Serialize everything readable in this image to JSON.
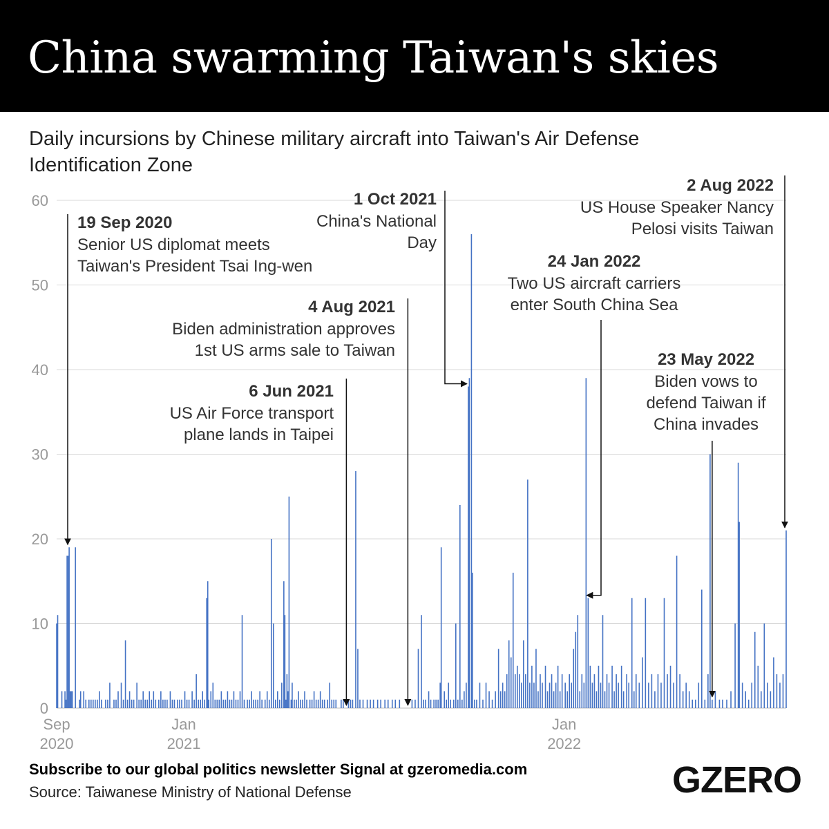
{
  "header": {
    "title": "China swarming Taiwan's skies",
    "subtitle": "Daily incursions by Chinese military aircraft into Taiwan's Air Defense Identification Zone"
  },
  "footer": {
    "signup": "Subscribe to our global politics newsletter Signal at gzeromedia.com",
    "source": "Source: Taiwanese Ministry of National Defense",
    "logo": "GZERO"
  },
  "colors": {
    "bar": "#4472c4",
    "grid": "#d9d9d9",
    "header_bg": "#000000"
  },
  "chart_data": {
    "type": "bar",
    "y_ticks": [
      0,
      10,
      20,
      30,
      40,
      50,
      60
    ],
    "ylim": [
      0,
      60
    ],
    "xlim": [
      "2020-09-01",
      "2022-08-02"
    ],
    "x_ticks": [
      {
        "date": "2020-09-01",
        "line1": "Sep",
        "line2": "2020"
      },
      {
        "date": "2021-01-01",
        "line1": "Jan",
        "line2": "2021"
      },
      {
        "date": "2022-01-01",
        "line1": "Jan",
        "line2": "2022"
      }
    ],
    "grid": true,
    "points": [
      [
        "2020-09-01",
        10
      ],
      [
        "2020-09-02",
        11
      ],
      [
        "2020-09-06",
        2
      ],
      [
        "2020-09-09",
        2
      ],
      [
        "2020-09-10",
        1
      ],
      [
        "2020-09-11",
        18
      ],
      [
        "2020-09-12",
        18
      ],
      [
        "2020-09-13",
        19
      ],
      [
        "2020-09-14",
        2
      ],
      [
        "2020-09-15",
        2
      ],
      [
        "2020-09-16",
        2
      ],
      [
        "2020-09-19",
        19
      ],
      [
        "2020-09-23",
        1
      ],
      [
        "2020-09-24",
        2
      ],
      [
        "2020-09-27",
        2
      ],
      [
        "2020-09-29",
        1
      ],
      [
        "2020-10-02",
        1
      ],
      [
        "2020-10-04",
        1
      ],
      [
        "2020-10-06",
        1
      ],
      [
        "2020-10-08",
        1
      ],
      [
        "2020-10-10",
        1
      ],
      [
        "2020-10-12",
        2
      ],
      [
        "2020-10-14",
        1
      ],
      [
        "2020-10-18",
        1
      ],
      [
        "2020-10-20",
        1
      ],
      [
        "2020-10-22",
        3
      ],
      [
        "2020-10-26",
        1
      ],
      [
        "2020-10-28",
        1
      ],
      [
        "2020-10-30",
        2
      ],
      [
        "2020-11-02",
        3
      ],
      [
        "2020-11-04",
        1
      ],
      [
        "2020-11-06",
        8
      ],
      [
        "2020-11-08",
        1
      ],
      [
        "2020-11-10",
        2
      ],
      [
        "2020-11-12",
        1
      ],
      [
        "2020-11-14",
        1
      ],
      [
        "2020-11-17",
        3
      ],
      [
        "2020-11-19",
        1
      ],
      [
        "2020-11-21",
        1
      ],
      [
        "2020-11-23",
        2
      ],
      [
        "2020-11-25",
        1
      ],
      [
        "2020-11-27",
        1
      ],
      [
        "2020-11-29",
        2
      ],
      [
        "2020-12-01",
        1
      ],
      [
        "2020-12-03",
        2
      ],
      [
        "2020-12-05",
        1
      ],
      [
        "2020-12-08",
        1
      ],
      [
        "2020-12-10",
        2
      ],
      [
        "2020-12-12",
        1
      ],
      [
        "2020-12-14",
        1
      ],
      [
        "2020-12-16",
        1
      ],
      [
        "2020-12-19",
        2
      ],
      [
        "2020-12-21",
        1
      ],
      [
        "2020-12-23",
        1
      ],
      [
        "2020-12-26",
        1
      ],
      [
        "2020-12-28",
        1
      ],
      [
        "2020-12-30",
        1
      ],
      [
        "2021-01-02",
        2
      ],
      [
        "2021-01-04",
        1
      ],
      [
        "2021-01-06",
        1
      ],
      [
        "2021-01-09",
        2
      ],
      [
        "2021-01-11",
        1
      ],
      [
        "2021-01-13",
        4
      ],
      [
        "2021-01-15",
        1
      ],
      [
        "2021-01-17",
        1
      ],
      [
        "2021-01-19",
        2
      ],
      [
        "2021-01-21",
        1
      ],
      [
        "2021-01-23",
        13
      ],
      [
        "2021-01-24",
        15
      ],
      [
        "2021-01-25",
        1
      ],
      [
        "2021-01-27",
        2
      ],
      [
        "2021-01-29",
        3
      ],
      [
        "2021-01-31",
        1
      ],
      [
        "2021-02-02",
        1
      ],
      [
        "2021-02-04",
        1
      ],
      [
        "2021-02-06",
        2
      ],
      [
        "2021-02-08",
        1
      ],
      [
        "2021-02-10",
        1
      ],
      [
        "2021-02-12",
        2
      ],
      [
        "2021-02-14",
        1
      ],
      [
        "2021-02-16",
        1
      ],
      [
        "2021-02-18",
        2
      ],
      [
        "2021-02-20",
        1
      ],
      [
        "2021-02-22",
        1
      ],
      [
        "2021-02-24",
        2
      ],
      [
        "2021-02-26",
        11
      ],
      [
        "2021-02-28",
        1
      ],
      [
        "2021-03-03",
        1
      ],
      [
        "2021-03-05",
        1
      ],
      [
        "2021-03-07",
        2
      ],
      [
        "2021-03-09",
        1
      ],
      [
        "2021-03-11",
        1
      ],
      [
        "2021-03-13",
        1
      ],
      [
        "2021-03-15",
        2
      ],
      [
        "2021-03-17",
        1
      ],
      [
        "2021-03-20",
        1
      ],
      [
        "2021-03-22",
        2
      ],
      [
        "2021-03-24",
        1
      ],
      [
        "2021-03-26",
        20
      ],
      [
        "2021-03-28",
        10
      ],
      [
        "2021-03-30",
        1
      ],
      [
        "2021-04-01",
        2
      ],
      [
        "2021-04-03",
        1
      ],
      [
        "2021-04-05",
        3
      ],
      [
        "2021-04-07",
        15
      ],
      [
        "2021-04-08",
        11
      ],
      [
        "2021-04-09",
        1
      ],
      [
        "2021-04-10",
        4
      ],
      [
        "2021-04-11",
        2
      ],
      [
        "2021-04-12",
        25
      ],
      [
        "2021-04-14",
        1
      ],
      [
        "2021-04-15",
        3
      ],
      [
        "2021-04-17",
        1
      ],
      [
        "2021-04-19",
        1
      ],
      [
        "2021-04-21",
        2
      ],
      [
        "2021-04-23",
        1
      ],
      [
        "2021-04-25",
        1
      ],
      [
        "2021-04-27",
        2
      ],
      [
        "2021-04-29",
        1
      ],
      [
        "2021-05-02",
        1
      ],
      [
        "2021-05-04",
        1
      ],
      [
        "2021-05-06",
        2
      ],
      [
        "2021-05-08",
        1
      ],
      [
        "2021-05-10",
        1
      ],
      [
        "2021-05-12",
        2
      ],
      [
        "2021-05-14",
        1
      ],
      [
        "2021-05-16",
        1
      ],
      [
        "2021-05-19",
        1
      ],
      [
        "2021-05-21",
        3
      ],
      [
        "2021-05-23",
        1
      ],
      [
        "2021-05-25",
        1
      ],
      [
        "2021-05-27",
        1
      ],
      [
        "2021-06-01",
        1
      ],
      [
        "2021-06-03",
        1
      ],
      [
        "2021-06-06",
        0
      ],
      [
        "2021-06-08",
        1
      ],
      [
        "2021-06-10",
        1
      ],
      [
        "2021-06-12",
        1
      ],
      [
        "2021-06-15",
        28
      ],
      [
        "2021-06-17",
        7
      ],
      [
        "2021-06-19",
        1
      ],
      [
        "2021-06-22",
        1
      ],
      [
        "2021-06-26",
        1
      ],
      [
        "2021-06-29",
        1
      ],
      [
        "2021-07-02",
        1
      ],
      [
        "2021-07-06",
        1
      ],
      [
        "2021-07-09",
        1
      ],
      [
        "2021-07-13",
        1
      ],
      [
        "2021-07-16",
        1
      ],
      [
        "2021-07-20",
        1
      ],
      [
        "2021-07-23",
        1
      ],
      [
        "2021-07-27",
        1
      ],
      [
        "2021-08-04",
        0
      ],
      [
        "2021-08-08",
        1
      ],
      [
        "2021-08-11",
        1
      ],
      [
        "2021-08-14",
        7
      ],
      [
        "2021-08-17",
        11
      ],
      [
        "2021-08-19",
        1
      ],
      [
        "2021-08-21",
        1
      ],
      [
        "2021-08-24",
        2
      ],
      [
        "2021-08-26",
        1
      ],
      [
        "2021-08-29",
        1
      ],
      [
        "2021-08-31",
        1
      ],
      [
        "2021-09-02",
        1
      ],
      [
        "2021-09-04",
        3
      ],
      [
        "2021-09-05",
        19
      ],
      [
        "2021-09-08",
        2
      ],
      [
        "2021-09-10",
        1
      ],
      [
        "2021-09-12",
        3
      ],
      [
        "2021-09-14",
        1
      ],
      [
        "2021-09-17",
        1
      ],
      [
        "2021-09-19",
        10
      ],
      [
        "2021-09-21",
        1
      ],
      [
        "2021-09-23",
        24
      ],
      [
        "2021-09-25",
        1
      ],
      [
        "2021-09-27",
        2
      ],
      [
        "2021-09-29",
        3
      ],
      [
        "2021-10-01",
        38
      ],
      [
        "2021-10-02",
        39
      ],
      [
        "2021-10-04",
        56
      ],
      [
        "2021-10-05",
        16
      ],
      [
        "2021-10-07",
        1
      ],
      [
        "2021-10-09",
        1
      ],
      [
        "2021-10-12",
        3
      ],
      [
        "2021-10-15",
        1
      ],
      [
        "2021-10-18",
        3
      ],
      [
        "2021-10-21",
        2
      ],
      [
        "2021-10-24",
        1
      ],
      [
        "2021-10-27",
        2
      ],
      [
        "2021-10-30",
        7
      ],
      [
        "2021-11-01",
        2
      ],
      [
        "2021-11-03",
        3
      ],
      [
        "2021-11-05",
        2
      ],
      [
        "2021-11-07",
        4
      ],
      [
        "2021-11-09",
        8
      ],
      [
        "2021-11-11",
        6
      ],
      [
        "2021-11-13",
        16
      ],
      [
        "2021-11-15",
        4
      ],
      [
        "2021-11-17",
        5
      ],
      [
        "2021-11-19",
        4
      ],
      [
        "2021-11-21",
        3
      ],
      [
        "2021-11-23",
        8
      ],
      [
        "2021-11-25",
        4
      ],
      [
        "2021-11-27",
        27
      ],
      [
        "2021-11-29",
        3
      ],
      [
        "2021-12-01",
        5
      ],
      [
        "2021-12-03",
        3
      ],
      [
        "2021-12-05",
        7
      ],
      [
        "2021-12-07",
        2
      ],
      [
        "2021-12-09",
        4
      ],
      [
        "2021-12-11",
        3
      ],
      [
        "2021-12-14",
        5
      ],
      [
        "2021-12-16",
        2
      ],
      [
        "2021-12-18",
        3
      ],
      [
        "2021-12-20",
        4
      ],
      [
        "2021-12-22",
        2
      ],
      [
        "2021-12-24",
        3
      ],
      [
        "2021-12-26",
        5
      ],
      [
        "2021-12-28",
        2
      ],
      [
        "2021-12-30",
        4
      ],
      [
        "2022-01-02",
        3
      ],
      [
        "2022-01-04",
        2
      ],
      [
        "2022-01-06",
        4
      ],
      [
        "2022-01-08",
        3
      ],
      [
        "2022-01-10",
        7
      ],
      [
        "2022-01-12",
        9
      ],
      [
        "2022-01-14",
        11
      ],
      [
        "2022-01-16",
        2
      ],
      [
        "2022-01-18",
        4
      ],
      [
        "2022-01-20",
        3
      ],
      [
        "2022-01-22",
        39
      ],
      [
        "2022-01-24",
        13
      ],
      [
        "2022-01-26",
        5
      ],
      [
        "2022-01-28",
        3
      ],
      [
        "2022-01-30",
        4
      ],
      [
        "2022-02-01",
        2
      ],
      [
        "2022-02-03",
        5
      ],
      [
        "2022-02-05",
        3
      ],
      [
        "2022-02-07",
        11
      ],
      [
        "2022-02-09",
        2
      ],
      [
        "2022-02-11",
        4
      ],
      [
        "2022-02-13",
        3
      ],
      [
        "2022-02-16",
        5
      ],
      [
        "2022-02-18",
        2
      ],
      [
        "2022-02-20",
        4
      ],
      [
        "2022-02-22",
        3
      ],
      [
        "2022-02-25",
        5
      ],
      [
        "2022-02-27",
        2
      ],
      [
        "2022-03-02",
        4
      ],
      [
        "2022-03-04",
        3
      ],
      [
        "2022-03-07",
        13
      ],
      [
        "2022-03-09",
        2
      ],
      [
        "2022-03-11",
        4
      ],
      [
        "2022-03-14",
        3
      ],
      [
        "2022-03-17",
        6
      ],
      [
        "2022-03-20",
        13
      ],
      [
        "2022-03-23",
        3
      ],
      [
        "2022-03-26",
        4
      ],
      [
        "2022-03-29",
        2
      ],
      [
        "2022-04-01",
        4
      ],
      [
        "2022-04-04",
        3
      ],
      [
        "2022-04-07",
        13
      ],
      [
        "2022-04-10",
        4
      ],
      [
        "2022-04-13",
        5
      ],
      [
        "2022-04-16",
        3
      ],
      [
        "2022-04-19",
        18
      ],
      [
        "2022-04-22",
        4
      ],
      [
        "2022-04-25",
        2
      ],
      [
        "2022-04-28",
        3
      ],
      [
        "2022-05-01",
        2
      ],
      [
        "2022-05-04",
        1
      ],
      [
        "2022-05-07",
        1
      ],
      [
        "2022-05-10",
        3
      ],
      [
        "2022-05-13",
        14
      ],
      [
        "2022-05-16",
        1
      ],
      [
        "2022-05-19",
        4
      ],
      [
        "2022-05-21",
        30
      ],
      [
        "2022-05-23",
        1
      ],
      [
        "2022-05-26",
        2
      ],
      [
        "2022-05-30",
        1
      ],
      [
        "2022-06-02",
        1
      ],
      [
        "2022-06-06",
        1
      ],
      [
        "2022-06-10",
        2
      ],
      [
        "2022-06-14",
        10
      ],
      [
        "2022-06-17",
        29
      ],
      [
        "2022-06-18",
        22
      ],
      [
        "2022-06-21",
        3
      ],
      [
        "2022-06-24",
        2
      ],
      [
        "2022-06-27",
        1
      ],
      [
        "2022-06-30",
        3
      ],
      [
        "2022-07-03",
        9
      ],
      [
        "2022-07-06",
        5
      ],
      [
        "2022-07-09",
        2
      ],
      [
        "2022-07-12",
        10
      ],
      [
        "2022-07-15",
        3
      ],
      [
        "2022-07-18",
        2
      ],
      [
        "2022-07-21",
        6
      ],
      [
        "2022-07-24",
        4
      ],
      [
        "2022-07-27",
        3
      ],
      [
        "2022-07-30",
        4
      ],
      [
        "2022-08-02",
        21
      ]
    ],
    "annotations": [
      {
        "date": "2020-09-19",
        "value": 19,
        "date_label": "19 Sep 2020",
        "text": [
          "Senior US diplomat meets",
          "Taiwan's President Tsai Ing-wen"
        ]
      },
      {
        "date": "2021-06-06",
        "value": 0,
        "date_label": "6 Jun 2021",
        "text": [
          "US Air Force transport",
          "plane lands in Taipei"
        ]
      },
      {
        "date": "2021-08-04",
        "value": 0,
        "date_label": "4 Aug 2021",
        "text": [
          "Biden administration approves",
          "1st US arms sale to Taiwan"
        ]
      },
      {
        "date": "2021-10-01",
        "value": 38,
        "date_label": "1 Oct 2021",
        "text": [
          "China's National",
          "Day"
        ]
      },
      {
        "date": "2022-01-24",
        "value": 13,
        "date_label": "24 Jan 2022",
        "text": [
          "Two US aircraft carriers",
          "enter South China Sea"
        ]
      },
      {
        "date": "2022-05-23",
        "value": 1,
        "date_label": "23 May 2022",
        "text": [
          "Biden vows to",
          "defend Taiwan if",
          "China invades"
        ]
      },
      {
        "date": "2022-08-02",
        "value": 21,
        "date_label": "2 Aug 2022",
        "text": [
          "US House Speaker Nancy",
          "Pelosi visits Taiwan"
        ]
      }
    ]
  }
}
